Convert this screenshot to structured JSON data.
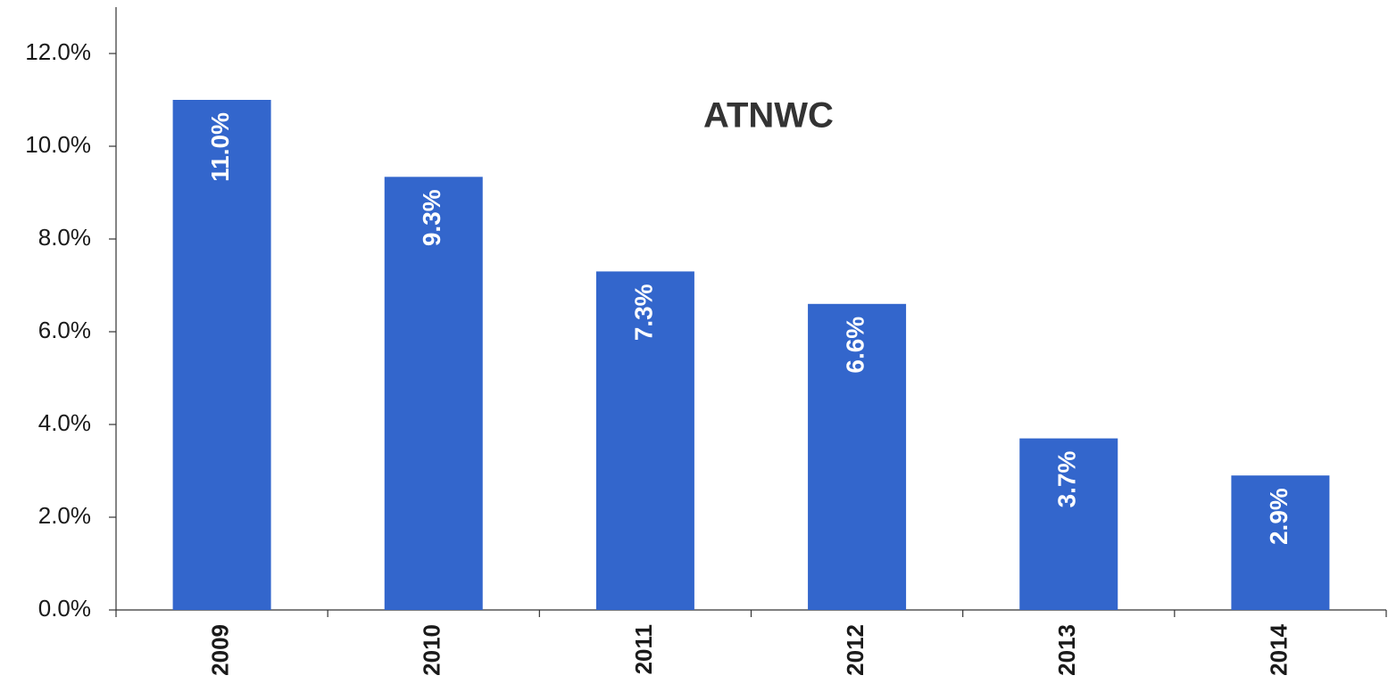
{
  "chart_data": {
    "type": "bar",
    "title": "ATNWC",
    "categories": [
      "2009",
      "2010",
      "2011",
      "2012",
      "2013",
      "2014"
    ],
    "values": [
      11.0,
      9.34,
      7.3,
      6.6,
      3.7,
      2.9
    ],
    "value_labels": [
      "11.0%",
      "9.3%",
      "7.3%",
      "6.6%",
      "3.7%",
      "2.9%"
    ],
    "color": "#3366cc",
    "ylim": [
      0,
      13
    ],
    "yticks": [
      {
        "value": 0,
        "label": "0.0%"
      },
      {
        "value": 2,
        "label": "2.0%"
      },
      {
        "value": 4,
        "label": "4.0%"
      },
      {
        "value": 6,
        "label": "6.0%"
      },
      {
        "value": 8,
        "label": "8.0%"
      },
      {
        "value": 10,
        "label": "10.0%"
      },
      {
        "value": 12,
        "label": "12.0%"
      }
    ],
    "grid": false
  }
}
